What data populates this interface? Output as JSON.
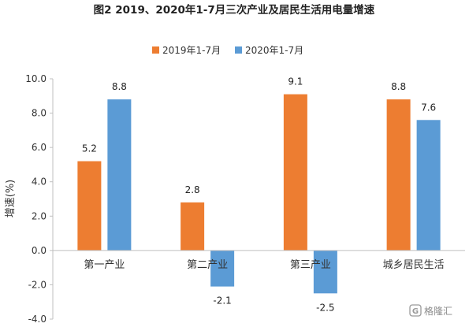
{
  "chart_data": {
    "type": "bar",
    "title": "图2 2019、2020年1-7月三次产业及居民生活用电量增速",
    "ylabel": "增速(%)",
    "xlabel": "",
    "categories": [
      "第一产业",
      "第二产业",
      "第三产业",
      "城乡居民生活"
    ],
    "series": [
      {
        "name": "2019年1-7月",
        "color": "#ED7D31",
        "values": [
          5.2,
          2.8,
          9.1,
          8.8
        ]
      },
      {
        "name": "2020年1-7月",
        "color": "#5B9BD5",
        "values": [
          8.8,
          -2.1,
          -2.5,
          7.6
        ]
      }
    ],
    "ylim": [
      -4.0,
      10.0
    ],
    "yticks": [
      "10.0",
      "8.0",
      "6.0",
      "4.0",
      "2.0",
      "0.0",
      "-2.0",
      "-4.0"
    ],
    "ytick_values": [
      10,
      8,
      6,
      4,
      2,
      0,
      -2,
      -4
    ],
    "grid": false,
    "legend_position": "top-center",
    "data_labels": true
  },
  "watermark": {
    "text": "格隆汇",
    "icon": "logo-g-icon"
  }
}
